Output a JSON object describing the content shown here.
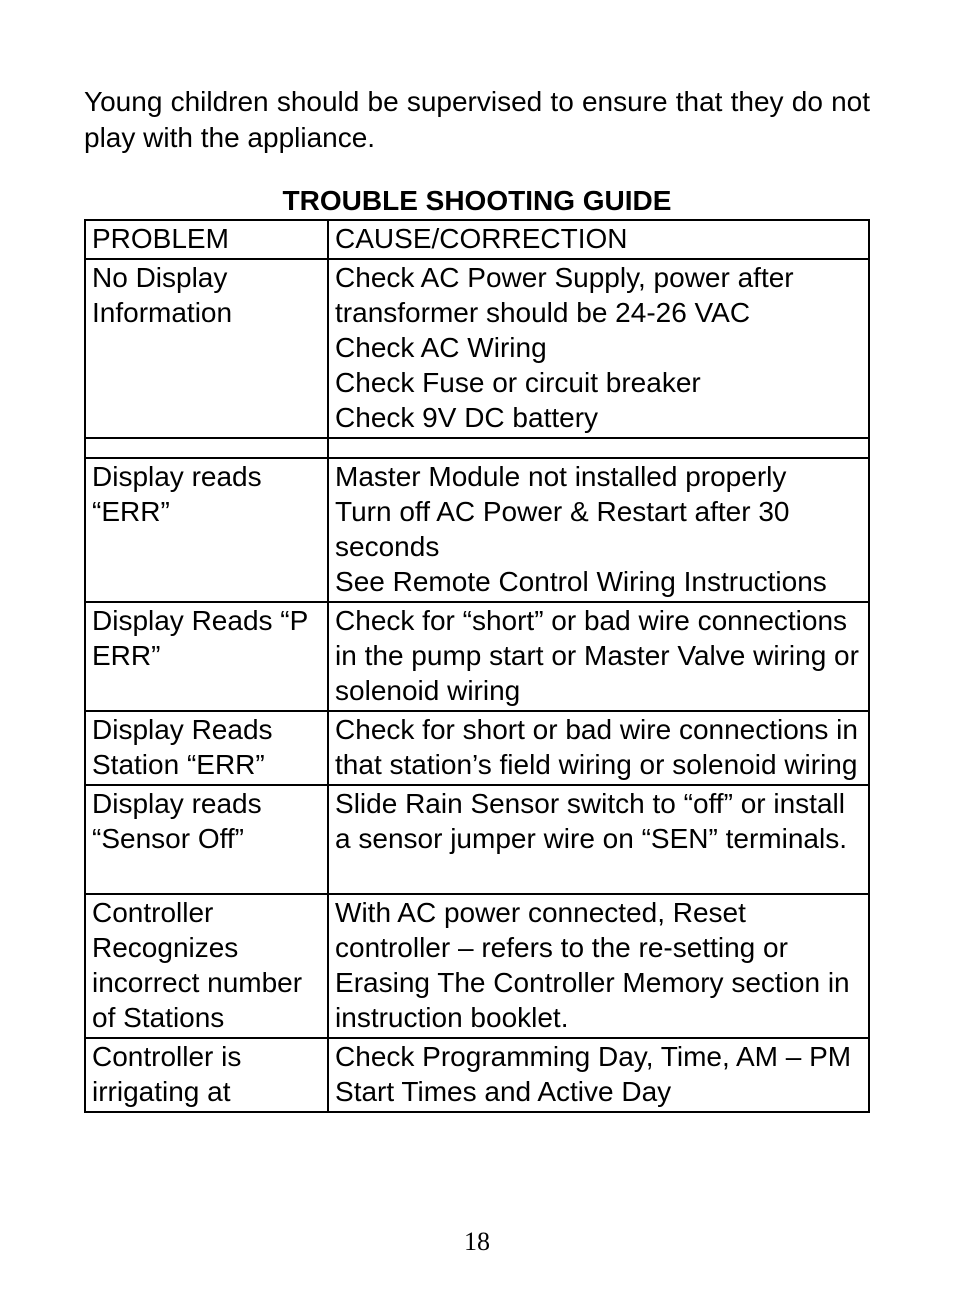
{
  "intro_text": "Young children should be supervised to ensure that they do not play with the appliance.",
  "guide_title": "TROUBLE SHOOTING GUIDE",
  "table": {
    "header": {
      "c1": "PROBLEM",
      "c2": "CAUSE/CORRECTION"
    },
    "rows": [
      {
        "c1": "No Display Information",
        "c2": "Check AC Power Supply, power after transformer should be 24-26 VAC\nCheck AC Wiring\nCheck Fuse or circuit breaker\nCheck 9V DC battery"
      },
      {
        "spacer": true
      },
      {
        "c1": "Display reads “ERR”",
        "c2": "Master Module not installed properly\nTurn off AC Power & Restart after 30 seconds\nSee Remote Control Wiring Instructions"
      },
      {
        "c1": "Display Reads “P ERR”",
        "c2": "Check for “short” or bad wire connections in the pump start or Master Valve wiring or solenoid wiring"
      },
      {
        "c1": "Display Reads Station “ERR”",
        "c2": "Check for short or bad wire connections in that station’s field wiring or solenoid wiring"
      },
      {
        "c1": "Display reads “Sensor Off”",
        "c2": "Slide Rain Sensor switch to “off” or install a sensor jumper wire on “SEN” terminals.\n "
      },
      {
        "c1": "Controller Recognizes incorrect number of Stations",
        "c2": "With AC power connected, Reset controller – refers to the re-setting or Erasing The Controller Memory section in instruction booklet."
      },
      {
        "c1": "Controller is irrigating at",
        "c2": "Check Programming Day, Time, AM – PM Start Times and Active Day"
      }
    ]
  },
  "page_number": "18",
  "colors": {
    "background": "#ffffff",
    "text": "#000000",
    "border": "#000000"
  },
  "typography": {
    "body_font": "Arial",
    "body_size_pt": 21,
    "page_number_font": "Times New Roman",
    "page_number_size_pt": 20,
    "title_weight": "bold"
  }
}
